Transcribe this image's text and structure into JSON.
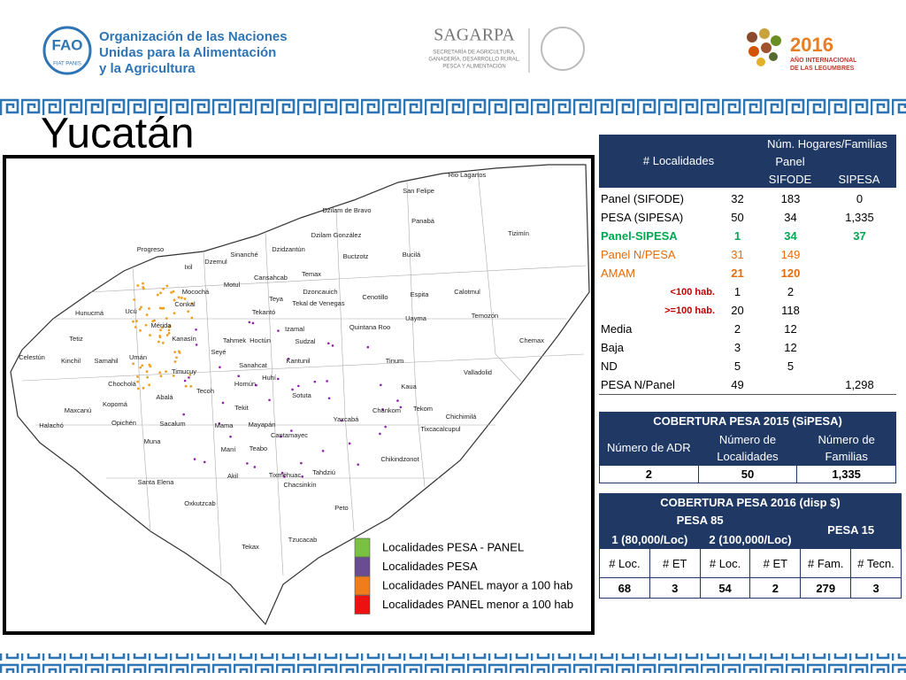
{
  "header": {
    "org_lines": [
      "Organización de las Naciones",
      "Unidas para la Alimentación",
      "y la Agricultura"
    ],
    "fao_letters": "FAO",
    "fao_motto": "FIAT PANIS",
    "sagarpa": "SAGARPA",
    "sagarpa_lines": [
      "SECRETARÍA DE AGRICULTURA,",
      "GANADERÍA, DESARROLLO RURAL,",
      "PESCA Y ALIMENTACIÓN"
    ],
    "year_logo": "2016",
    "year_lines": [
      "AÑO INTERNACIONAL",
      "DE LAS LEGUMBRES"
    ]
  },
  "title": "Yucatán",
  "map": {
    "labels": [
      "Rio Lagartos",
      "San Felipe",
      "Dzilam de Bravo",
      "Panabá",
      "Dzilam González",
      "Tizimín",
      "Dzidzantún",
      "Buctzotz",
      "Sinanché",
      "Progreso",
      "Ixil",
      "Dzemul",
      "Temax",
      "Bucilá",
      "Motul",
      "Cansahcab",
      "Mocochá",
      "Dzoncauich",
      "Cenotillo",
      "Espita",
      "Calotmul",
      "Teya",
      "Tekal de Venegas",
      "Conkal",
      "Uayma",
      "Hunucmá",
      "Ucú",
      "Tekantó",
      "Temozón",
      "Mérida",
      "Izamal",
      "Quintana Roo",
      "Chemax",
      "Tetiz",
      "Kanasín",
      "Tahmek",
      "Hoctún",
      "Sudzal",
      "Seyé",
      "Kantunil",
      "Celestún",
      "Kinchil",
      "Samahil",
      "Umán",
      "Tinum",
      "Valladolid",
      "Timucuy",
      "Sanahcat",
      "Huhí",
      "Chocholá",
      "Tecoh",
      "Homún",
      "Kaua",
      "Sotuta",
      "Abalá",
      "Kopomá",
      "Maxcanú",
      "Chankom",
      "Tekom",
      "Chichimilá",
      "Tekit",
      "Yaxcabá",
      "Opichén",
      "Halachó",
      "Sacalum",
      "Mama",
      "Mayapán",
      "Tixcacalcupul",
      "Cantamayec",
      "Muna",
      "Teabo",
      "Chikindzonot",
      "Maní",
      "Santa Elena",
      "Tixméhuac",
      "Chacsinkín",
      "Tahdziú",
      "Akil",
      "Oxkutzcab",
      "Peto",
      "Tzucacab",
      "Tekax"
    ],
    "legend": [
      {
        "label": "Localidades PESA - PANEL",
        "color": "#7ac143"
      },
      {
        "label": "Localidades PESA",
        "color": "#6a4c93"
      },
      {
        "label": "Localidades PANEL mayor a 100 hab",
        "color": "#f07d1a"
      },
      {
        "label": "Localidades PANEL menor a 100 hab",
        "color": "#ee1111"
      }
    ]
  },
  "table_localidades": {
    "header": {
      "localidades": "# Localidades",
      "hogares": "Núm. Hogares/Familias",
      "panel": "Panel",
      "sifode": "SIFODE",
      "sipesa": "SIPESA"
    },
    "rows": [
      {
        "label": "Panel (SIFODE)",
        "cells": [
          "32",
          "183",
          "0"
        ]
      },
      {
        "label": "PESA (SIPESA)",
        "cells": [
          "50",
          "34",
          "1,335"
        ]
      },
      {
        "label": "Panel-SIPESA",
        "cells": [
          "1",
          "34",
          "37"
        ],
        "label_color": "#00a651",
        "value_color": "#00a651",
        "bold_label": true,
        "bold_values": true
      },
      {
        "label": "Panel N/PESA",
        "cells": [
          "31",
          "149",
          null
        ],
        "label_color": "#e46c0a",
        "value_color": "#e46c0a"
      },
      {
        "label": "AMAM",
        "cells": [
          "21",
          "120",
          null
        ],
        "label_color": "#e46c0a",
        "value_color": "#e46c0a",
        "bold_values": true
      },
      {
        "label": "<100 hab.",
        "cells": [
          "1",
          "2",
          null
        ],
        "label_color": "#c00000",
        "bold_label": true,
        "sub": true
      },
      {
        "label": ">=100 hab.",
        "cells": [
          "20",
          "118",
          null
        ],
        "label_color": "#c00000",
        "bold_label": true,
        "sub": true
      },
      {
        "label": "Media",
        "cells": [
          "2",
          "12",
          null
        ]
      },
      {
        "label": "Baja",
        "cells": [
          "3",
          "12",
          null
        ]
      },
      {
        "label": "ND",
        "cells": [
          "5",
          "5",
          null
        ]
      },
      {
        "label": "PESA N/Panel",
        "cells": [
          "49",
          null,
          "1,298"
        ]
      }
    ]
  },
  "table_2015": {
    "title": "COBERTURA  PESA 2015 (SiPESA)",
    "headers": [
      "Número de ADR",
      "Número de Localidades",
      "Número de Familias"
    ],
    "values": [
      "2",
      "50",
      "1,335"
    ]
  },
  "table_2016": {
    "title": "COBERTURA PESA 2016 (disp $)",
    "group_85": "PESA 85",
    "group_15": "PESA 15",
    "sub_groups": [
      "1 (80,000/Loc)",
      "2 (100,000/Loc)"
    ],
    "headers": [
      "# Loc.",
      "# ET",
      "# Loc.",
      "# ET",
      "# Fam.",
      "# Tecn."
    ],
    "values": [
      "68",
      "3",
      "54",
      "2",
      "279",
      "3"
    ]
  }
}
